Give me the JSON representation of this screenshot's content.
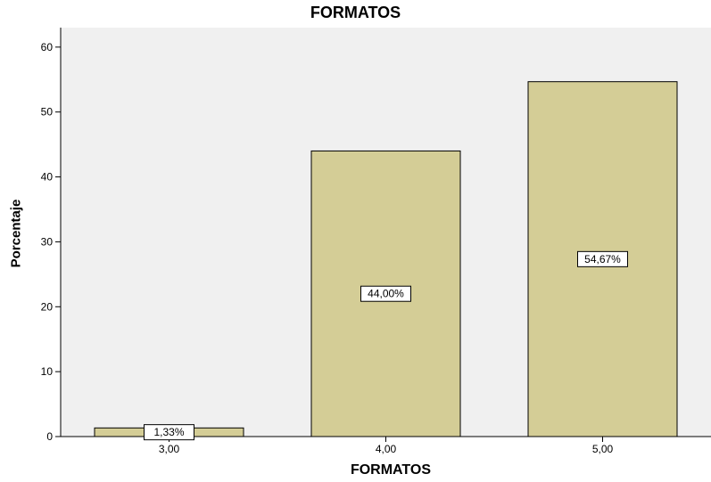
{
  "chart_data": {
    "type": "bar",
    "title": "FORMATOS",
    "xlabel": "FORMATOS",
    "ylabel": "Porcentaje",
    "categories": [
      "3,00",
      "4,00",
      "5,00"
    ],
    "values": [
      1.33,
      44.0,
      54.67
    ],
    "data_labels": [
      "1,33%",
      "44,00%",
      "54,67%"
    ],
    "ylim": [
      0,
      63
    ],
    "yticks": [
      0,
      10,
      20,
      30,
      40,
      50,
      60
    ],
    "ytick_labels": [
      "0",
      "10",
      "20",
      "30",
      "40",
      "50",
      "60"
    ],
    "grid": false,
    "legend": "none",
    "colors": {
      "bar_fill": "#d4cd96",
      "plot_bg": "#f0f0f0",
      "bar_stroke": "#000000"
    }
  }
}
